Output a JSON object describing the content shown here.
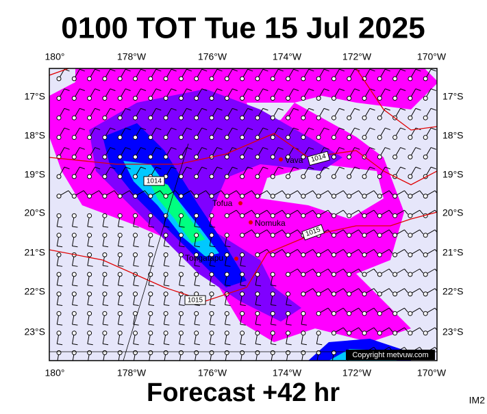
{
  "header": {
    "title": "0100 TOT Tue 15 Jul 2025"
  },
  "footer": {
    "forecast": "Forecast +42 hr",
    "image_id": "IM2"
  },
  "map": {
    "lon_labels": [
      "180°",
      "178°W",
      "176°W",
      "174°W",
      "172°W",
      "170°W"
    ],
    "lat_labels": [
      "17°S",
      "18°S",
      "19°S",
      "20°S",
      "21°S",
      "22°S",
      "23°S"
    ],
    "places": [
      "Vava",
      "Tofua",
      "Nomuka",
      "Tongatapu"
    ],
    "isobar_labels": [
      "1014",
      "1014",
      "1015",
      "1015"
    ],
    "copyright": "Copyright metvuw.com"
  }
}
